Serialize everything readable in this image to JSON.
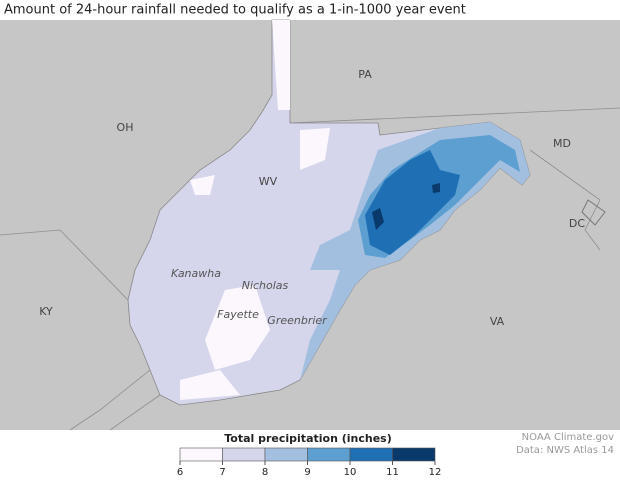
{
  "title": "Amount of 24-hour rainfall needed to qualify as a 1-in-1000 year event",
  "states": [
    "PA",
    "OH",
    "WV",
    "MD",
    "DC",
    "KY",
    "VA"
  ],
  "counties": [
    "Kanawha",
    "Nicholas",
    "Fayette",
    "Greenbrier"
  ],
  "legend": {
    "title": "Total precipitation (inches)",
    "ticks": [
      6,
      7,
      8,
      9,
      10,
      11,
      12
    ],
    "colors": [
      "#fbf7fc",
      "#d5d6ec",
      "#a3bfe0",
      "#5d9fd0",
      "#1f6fb5",
      "#0a3a6b"
    ]
  },
  "credits": [
    "NOAA Climate.gov",
    "Data: NWS Atlas 14"
  ]
}
